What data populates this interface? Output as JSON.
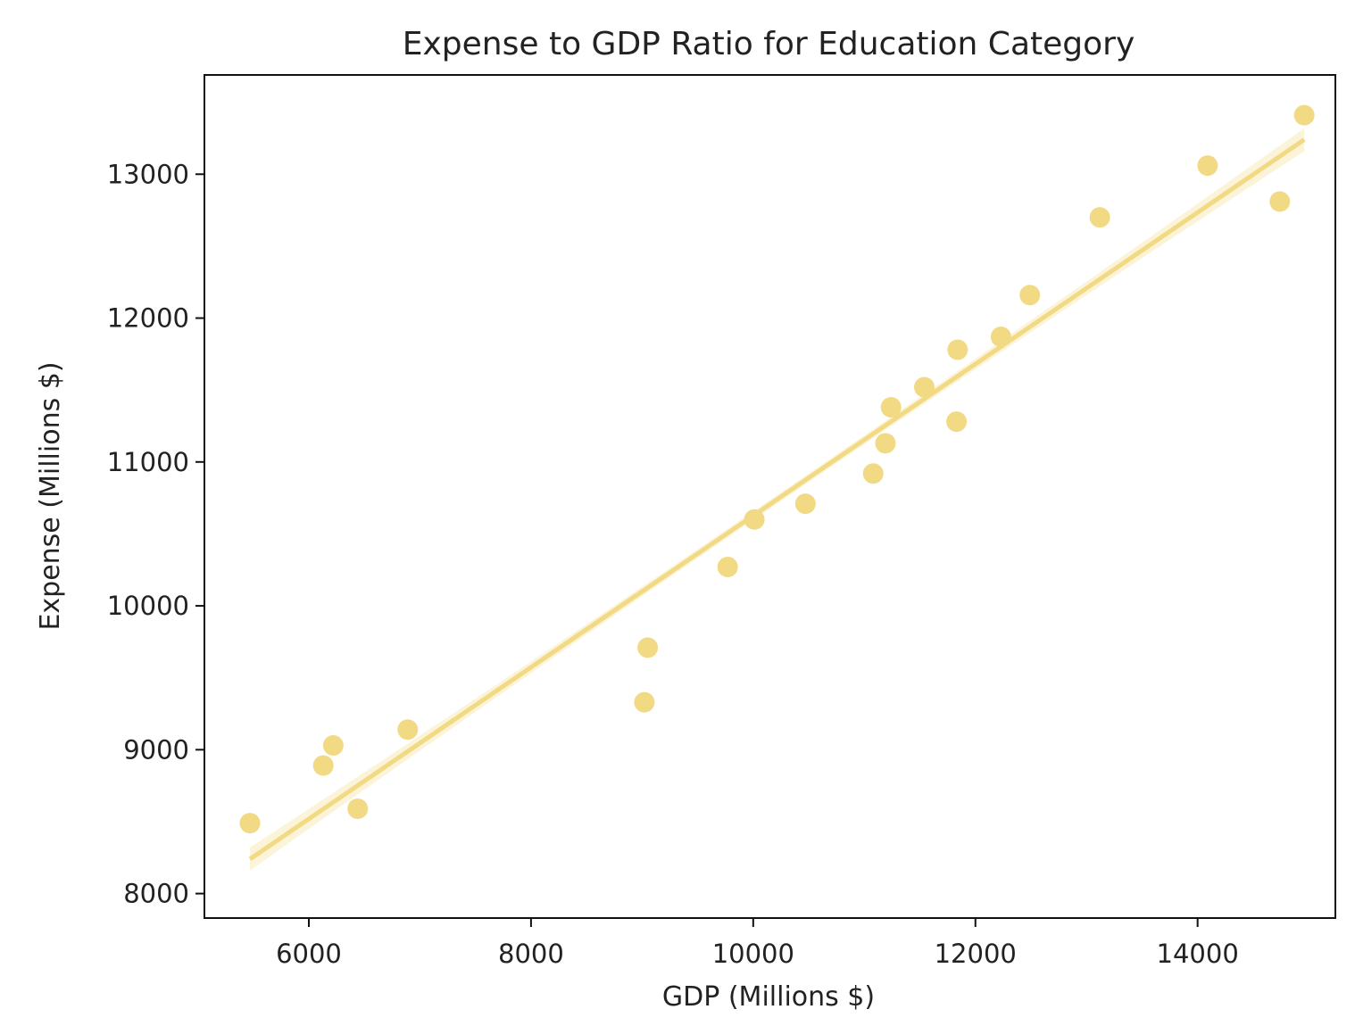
{
  "chart_data": {
    "type": "scatter",
    "title": "Expense to GDP Ratio for Education Category",
    "xlabel": "GDP (Millions $)",
    "ylabel": "Expense (Millions $)",
    "xlim": [
      5060,
      15240
    ],
    "ylim": [
      7830,
      13690
    ],
    "x_ticks": [
      6000,
      8000,
      10000,
      12000,
      14000
    ],
    "y_ticks": [
      8000,
      9000,
      10000,
      11000,
      12000,
      13000
    ],
    "x_tick_labels": [
      "6000",
      "8000",
      "10000",
      "12000",
      "14000"
    ],
    "y_tick_labels": [
      "8000",
      "9000",
      "10000",
      "11000",
      "12000",
      "13000"
    ],
    "grid": false,
    "legend": "none",
    "colors": {
      "points": "#f2da85",
      "line": "#f2da85",
      "band": "#fbf1cf",
      "frame": "#111111"
    },
    "series": [
      {
        "points": [
          {
            "x": 5470,
            "y": 8490
          },
          {
            "x": 6130,
            "y": 8890
          },
          {
            "x": 6220,
            "y": 9030
          },
          {
            "x": 6440,
            "y": 8590
          },
          {
            "x": 6890,
            "y": 9140
          },
          {
            "x": 9020,
            "y": 9330
          },
          {
            "x": 9050,
            "y": 9710
          },
          {
            "x": 9770,
            "y": 10270
          },
          {
            "x": 10010,
            "y": 10600
          },
          {
            "x": 10470,
            "y": 10710
          },
          {
            "x": 11080,
            "y": 10920
          },
          {
            "x": 11190,
            "y": 11130
          },
          {
            "x": 11240,
            "y": 11380
          },
          {
            "x": 11540,
            "y": 11520
          },
          {
            "x": 11830,
            "y": 11280
          },
          {
            "x": 11840,
            "y": 11780
          },
          {
            "x": 12230,
            "y": 11870
          },
          {
            "x": 12490,
            "y": 12160
          },
          {
            "x": 13120,
            "y": 12700
          },
          {
            "x": 14090,
            "y": 13060
          },
          {
            "x": 14740,
            "y": 12810
          },
          {
            "x": 14960,
            "y": 13410
          }
        ]
      }
    ],
    "regression": {
      "start": {
        "x": 5470,
        "y": 8240
      },
      "end": {
        "x": 14960,
        "y": 13240
      },
      "ci_halfwidth_end": 80,
      "ci_halfwidth_center": 30
    }
  }
}
